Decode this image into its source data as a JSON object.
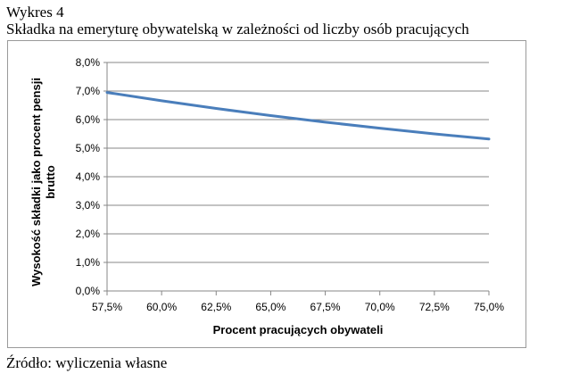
{
  "figure": {
    "number": "Wykres 4",
    "title": "Składka na emeryturę obywatelską w zależności od liczby osób pracujących",
    "source": "Źródło: wyliczenia własne"
  },
  "colors": {
    "series_line": "#4a7ebb",
    "gridline": "#878787",
    "axis": "#878787"
  },
  "chart_data": {
    "type": "line",
    "title": "",
    "xlabel": "Procent pracujących obywateli",
    "ylabel_lines": [
      "Wysokość składki jako procent pensji",
      "brutto"
    ],
    "x_tick_labels": [
      "57,5%",
      "60,0%",
      "62,5%",
      "65,0%",
      "67,5%",
      "70,0%",
      "72,5%",
      "75,0%"
    ],
    "y_tick_labels": [
      "0,0%",
      "1,0%",
      "2,0%",
      "3,0%",
      "4,0%",
      "5,0%",
      "6,0%",
      "7,0%",
      "8,0%"
    ],
    "xlim": [
      57.5,
      75.0
    ],
    "ylim": [
      0,
      8
    ],
    "grid": "horizontal",
    "legend": "none",
    "series": [
      {
        "x": [
          57.5,
          60.0,
          62.5,
          65.0,
          67.5,
          70.0,
          72.5,
          75.0
        ],
        "y": [
          6.95,
          6.66,
          6.39,
          6.14,
          5.91,
          5.7,
          5.5,
          5.32
        ]
      }
    ]
  }
}
